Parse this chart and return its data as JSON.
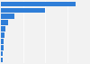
{
  "values": [
    85,
    50,
    15,
    8,
    5,
    4,
    3.5,
    3,
    2.5,
    2
  ],
  "bar_color": "#2f7ed8",
  "background_color": "#f2f2f2",
  "grid_color": "#ffffff",
  "xlim": [
    0,
    100
  ]
}
